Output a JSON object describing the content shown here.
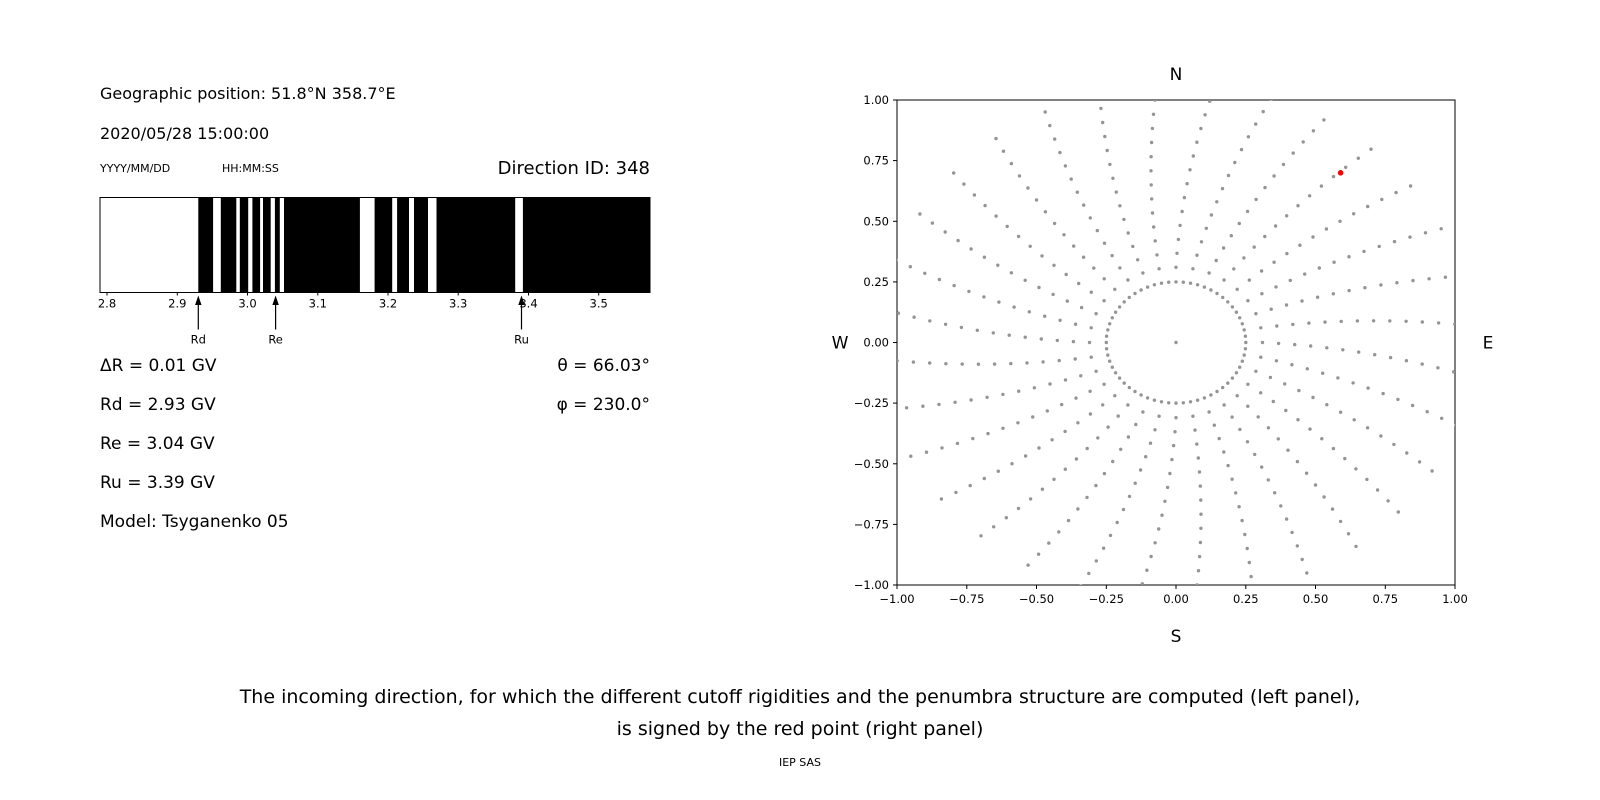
{
  "page": {
    "caption_line1": "The incoming direction, for which the different cutoff rigidities and the penumbra structure are computed (left panel),",
    "caption_line2": "is signed by the red point (right panel)",
    "credit": "IEP SAS"
  },
  "left_panel": {
    "geo_position": "Geographic position: 51.8°N 358.7°E",
    "datetime": "2020/05/28 15:00:00",
    "date_format_label": "YYYY/MM/DD",
    "time_format_label": "HH:MM:SS",
    "direction_id": "Direction ID: 348",
    "info_lines_left": [
      "ΔR = 0.01 GV",
      "Rd = 2.93 GV",
      "Re = 3.04 GV",
      "Ru = 3.39 GV",
      "Model: Tsyganenko 05"
    ],
    "info_lines_right": [
      "θ = 66.03°",
      "φ = 230.0°"
    ]
  },
  "chart_data": [
    {
      "id": "penumbra-strip",
      "type": "bar",
      "description": "Penumbra structure: black bands are forbidden rigidity intervals, white gaps are allowed",
      "x_range": [
        2.79,
        3.573
      ],
      "x_ticks": [
        2.8,
        2.9,
        3.0,
        3.1,
        3.2,
        3.3,
        3.4,
        3.5
      ],
      "band_color": "#000000",
      "background": "#ffffff",
      "black_bands": [
        [
          2.93,
          2.951
        ],
        [
          2.962,
          2.984
        ],
        [
          2.989,
          3.001
        ],
        [
          3.007,
          3.018
        ],
        [
          3.022,
          3.033
        ],
        [
          3.039,
          3.046
        ],
        [
          3.052,
          3.16
        ],
        [
          3.181,
          3.206
        ],
        [
          3.213,
          3.23
        ],
        [
          3.237,
          3.257
        ],
        [
          3.269,
          3.381
        ],
        [
          3.392,
          3.573
        ]
      ],
      "markers": [
        {
          "label": "Rd",
          "x": 2.93
        },
        {
          "label": "Re",
          "x": 3.04
        },
        {
          "label": "Ru",
          "x": 3.39
        }
      ]
    },
    {
      "id": "asymptotic-directions",
      "type": "scatter",
      "description": "Grid of incoming directions; red point marks the selected direction ID 348",
      "xlim": [
        -1.0,
        1.0
      ],
      "ylim": [
        -1.0,
        1.0
      ],
      "x_ticks": [
        -1.0,
        -0.75,
        -0.5,
        -0.25,
        0.0,
        0.25,
        0.5,
        0.75,
        1.0
      ],
      "y_ticks": [
        -1.0,
        -0.75,
        -0.5,
        -0.25,
        0.0,
        0.25,
        0.5,
        0.75,
        1.0
      ],
      "compass_labels": {
        "top": "N",
        "bottom": "S",
        "left": "W",
        "right": "E"
      },
      "dot_color": "#949494",
      "highlight_point": {
        "x": 0.59,
        "y": 0.7,
        "color": "#ff0000"
      },
      "pattern": {
        "n_spokes": 32,
        "spoke_r_start": 0.31,
        "spoke_r_end": 1.06,
        "dots_per_spoke": 14,
        "curvature_deg_per_unit_r": 10,
        "inner_ring_radius": 0.25,
        "inner_ring_dots": 60,
        "center_dot": true
      }
    }
  ]
}
